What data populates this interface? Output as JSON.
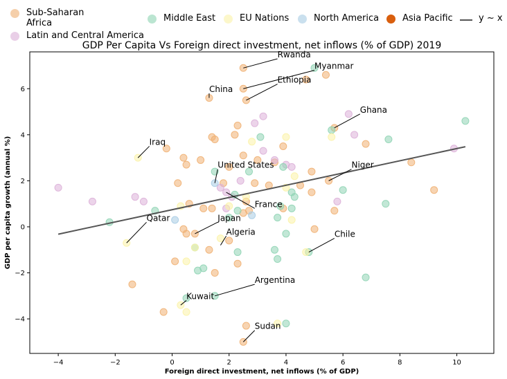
{
  "chart_data": {
    "type": "scatter",
    "title": "GDP Per Capita Vs Foreign direct investment, net inflows (% of GDP) 2019",
    "xlabel": "Foreign direct investment, net inflows (% of GDP)",
    "ylabel": "GDP per capita growth (annual %)",
    "xlim": [
      -5,
      11.3
    ],
    "ylim": [
      -5.5,
      7.6
    ],
    "xticks": [
      -4,
      -2,
      0,
      2,
      4,
      6,
      8,
      10
    ],
    "yticks": [
      -4,
      -2,
      0,
      2,
      4,
      6
    ],
    "grid": false,
    "legend_position": "top",
    "trend": {
      "label": "y ~ x",
      "color": "#555555",
      "x": [
        -4,
        10.3
      ],
      "y": [
        -0.32,
        3.48
      ]
    },
    "series": [
      {
        "name": "Sub-Saharan\nAfrica",
        "color": "#f0b072",
        "points": [
          [
            2.5,
            6.9
          ],
          [
            2.5,
            6.0
          ],
          [
            2.6,
            5.5
          ],
          [
            4.7,
            6.4
          ],
          [
            5.4,
            6.6
          ],
          [
            1.3,
            5.6
          ],
          [
            5.7,
            4.3
          ],
          [
            6.8,
            3.6
          ],
          [
            8.4,
            2.8
          ],
          [
            9.2,
            1.6
          ],
          [
            5.5,
            2.0
          ],
          [
            4.9,
            2.4
          ],
          [
            4.9,
            1.5
          ],
          [
            5.0,
            -0.1
          ],
          [
            5.7,
            0.7
          ],
          [
            2.3,
            4.4
          ],
          [
            2.2,
            4.0
          ],
          [
            1.4,
            3.9
          ],
          [
            1.5,
            3.8
          ],
          [
            3.6,
            2.8
          ],
          [
            3.9,
            3.5
          ],
          [
            3.0,
            2.9
          ],
          [
            3.4,
            1.8
          ],
          [
            4.5,
            1.8
          ],
          [
            2.9,
            1.9
          ],
          [
            2.6,
            1.1
          ],
          [
            2.5,
            0.6
          ],
          [
            2.0,
            2.6
          ],
          [
            1.0,
            2.9
          ],
          [
            0.4,
            3.0
          ],
          [
            0.5,
            2.7
          ],
          [
            0.2,
            1.9
          ],
          [
            0.6,
            1.0
          ],
          [
            1.1,
            0.8
          ],
          [
            1.4,
            0.8
          ],
          [
            1.8,
            1.9
          ],
          [
            2.7,
            0.7
          ],
          [
            0.4,
            -0.1
          ],
          [
            0.5,
            -0.3
          ],
          [
            0.8,
            -0.3
          ],
          [
            1.3,
            -1.0
          ],
          [
            2.0,
            -0.6
          ],
          [
            2.3,
            -1.6
          ],
          [
            1.5,
            -2.0
          ],
          [
            0.1,
            -1.5
          ],
          [
            -1.4,
            -2.5
          ],
          [
            -0.3,
            -3.7
          ],
          [
            -0.2,
            3.4
          ],
          [
            2.6,
            -4.3
          ],
          [
            2.5,
            -5.0
          ],
          [
            3.9,
            0.8
          ],
          [
            2.5,
            3.1
          ]
        ]
      },
      {
        "name": "Latin and Central America",
        "color": "#dcb0d8",
        "points": [
          [
            -4.0,
            1.7
          ],
          [
            -2.8,
            1.1
          ],
          [
            -1.3,
            1.3
          ],
          [
            -1.0,
            1.1
          ],
          [
            1.7,
            1.7
          ],
          [
            1.9,
            1.5
          ],
          [
            1.9,
            0.8
          ],
          [
            2.4,
            2.0
          ],
          [
            2.9,
            4.5
          ],
          [
            3.2,
            4.8
          ],
          [
            3.2,
            3.3
          ],
          [
            4.0,
            2.7
          ],
          [
            4.2,
            2.6
          ],
          [
            5.8,
            1.1
          ],
          [
            6.2,
            4.9
          ],
          [
            6.4,
            4.0
          ],
          [
            9.9,
            3.4
          ],
          [
            3.6,
            2.9
          ],
          [
            2.1,
            1.3
          ]
        ]
      },
      {
        "name": "Middle East",
        "color": "#8fd4b4",
        "points": [
          [
            5.0,
            6.9
          ],
          [
            5.6,
            4.2
          ],
          [
            7.6,
            3.8
          ],
          [
            10.3,
            4.6
          ],
          [
            3.1,
            3.9
          ],
          [
            3.9,
            2.6
          ],
          [
            4.2,
            1.5
          ],
          [
            4.3,
            1.3
          ],
          [
            6.0,
            1.6
          ],
          [
            7.5,
            1.0
          ],
          [
            2.0,
            0.4
          ],
          [
            2.3,
            0.7
          ],
          [
            3.8,
            0.9
          ],
          [
            4.2,
            0.8
          ],
          [
            3.7,
            0.4
          ],
          [
            4.0,
            -0.3
          ],
          [
            -2.2,
            0.2
          ],
          [
            -0.6,
            0.7
          ],
          [
            0.8,
            -0.9
          ],
          [
            1.1,
            -1.8
          ],
          [
            0.9,
            -1.9
          ],
          [
            2.3,
            -1.1
          ],
          [
            3.6,
            -1.0
          ],
          [
            3.7,
            -1.4
          ],
          [
            4.8,
            -1.1
          ],
          [
            6.8,
            -2.2
          ],
          [
            1.5,
            -3.0
          ],
          [
            0.5,
            -3.1
          ],
          [
            4.0,
            -4.2
          ],
          [
            1.5,
            2.4
          ],
          [
            2.2,
            1.4
          ],
          [
            2.7,
            2.4
          ]
        ]
      },
      {
        "name": "EU Nations",
        "color": "#fbf3a8",
        "points": [
          [
            -1.2,
            3.0
          ],
          [
            -1.6,
            -0.7
          ],
          [
            0.3,
            0.9
          ],
          [
            0.5,
            -1.5
          ],
          [
            0.8,
            -0.9
          ],
          [
            1.7,
            -0.5
          ],
          [
            4.0,
            1.7
          ],
          [
            4.2,
            0.3
          ],
          [
            4.7,
            -1.1
          ],
          [
            5.6,
            3.9
          ],
          [
            2.8,
            3.7
          ],
          [
            4.0,
            3.9
          ],
          [
            4.3,
            2.2
          ],
          [
            0.3,
            -3.4
          ],
          [
            0.5,
            -3.7
          ],
          [
            3.7,
            -4.2
          ],
          [
            2.0,
            0.9
          ],
          [
            2.6,
            1.3
          ]
        ]
      },
      {
        "name": "North America",
        "color": "#a8cce4",
        "points": [
          [
            1.5,
            1.9
          ],
          [
            2.8,
            0.5
          ],
          [
            0.1,
            0.3
          ]
        ]
      },
      {
        "name": "Asia Pacific",
        "color": "#d95f0e",
        "points": []
      }
    ],
    "annotations": [
      {
        "text": "Rwanda",
        "x": 2.5,
        "y": 6.9,
        "tx": 3.7,
        "ty": 7.3
      },
      {
        "text": "Myanmar",
        "x": 2.5,
        "y": 6.0,
        "tx": 5.0,
        "ty": 6.8
      },
      {
        "text": "Ethiopia",
        "x": 2.6,
        "y": 5.5,
        "tx": 3.7,
        "ty": 6.2
      },
      {
        "text": "China",
        "x": 1.3,
        "y": 5.6,
        "tx": 1.3,
        "ty": 5.8
      },
      {
        "text": "Ghana",
        "x": 5.7,
        "y": 4.3,
        "tx": 6.6,
        "ty": 4.9
      },
      {
        "text": "Iraq",
        "x": -1.2,
        "y": 3.0,
        "tx": -0.8,
        "ty": 3.5
      },
      {
        "text": "United States",
        "x": 1.5,
        "y": 1.9,
        "tx": 1.6,
        "ty": 2.5
      },
      {
        "text": "Niger",
        "x": 5.5,
        "y": 2.0,
        "tx": 6.3,
        "ty": 2.5
      },
      {
        "text": "France",
        "x": 1.9,
        "y": 1.5,
        "tx": 2.9,
        "ty": 0.8
      },
      {
        "text": "Qatar",
        "x": -1.6,
        "y": -0.7,
        "tx": -0.9,
        "ty": 0.2
      },
      {
        "text": "Japan",
        "x": 0.8,
        "y": -0.3,
        "tx": 1.6,
        "ty": 0.2
      },
      {
        "text": "Algeria",
        "x": 1.7,
        "y": -0.8,
        "tx": 1.9,
        "ty": -0.4
      },
      {
        "text": "Chile",
        "x": 4.8,
        "y": -1.1,
        "tx": 5.7,
        "ty": -0.5
      },
      {
        "text": "Argentina",
        "x": 1.5,
        "y": -3.0,
        "tx": 2.9,
        "ty": -2.5
      },
      {
        "text": "Kuwait",
        "x": 0.3,
        "y": -3.4,
        "tx": 0.5,
        "ty": -3.2
      },
      {
        "text": "Sudan",
        "x": 2.5,
        "y": -5.0,
        "tx": 2.9,
        "ty": -4.5
      }
    ]
  }
}
